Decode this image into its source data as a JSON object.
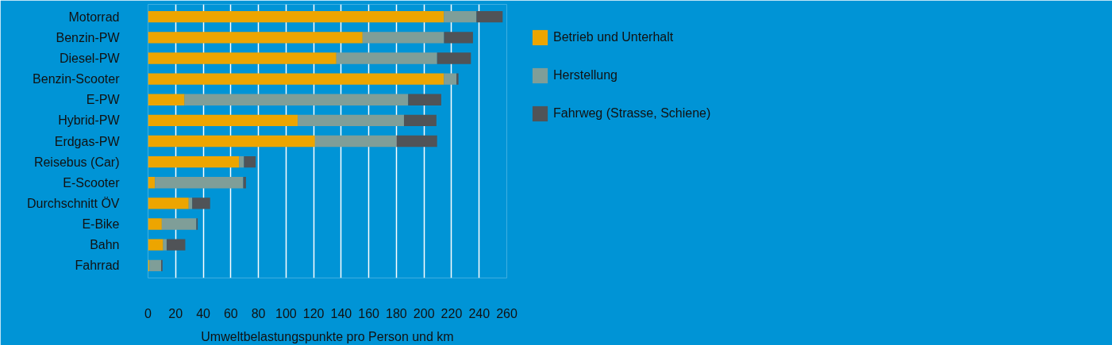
{
  "chart_data": {
    "type": "bar",
    "orientation": "horizontal",
    "stacked": true,
    "xlabel": "Umweltbelastungspunkte pro Person und km",
    "categories": [
      "Motorrad",
      "Benzin-PW",
      "Diesel-PW",
      "Benzin-Scooter",
      "E-PW",
      "Hybrid-PW",
      "Erdgas-PW",
      "Reisebus (Car)",
      "E-Scooter",
      "Durchschnitt ÖV",
      "E-Bike",
      "Bahn",
      "Fahrrad"
    ],
    "series": [
      {
        "name": "Betrieb und Unterhalt",
        "color": "#eda500",
        "values": [
          214.5,
          155.5,
          136.5,
          214.5,
          26.5,
          108.5,
          121,
          66,
          5,
          29.5,
          10,
          11,
          1
        ]
      },
      {
        "name": "Herstellung",
        "color": "#7f9e98",
        "values": [
          23.5,
          59,
          73,
          9,
          162,
          77,
          59,
          3.5,
          64,
          2.5,
          25,
          2.5,
          8.5
        ]
      },
      {
        "name": "Fahrweg (Strasse, Schiene)",
        "color": "#505357",
        "values": [
          19,
          21,
          24.5,
          1.5,
          24,
          23.5,
          29.5,
          8.5,
          2,
          13,
          1,
          13.5,
          1
        ]
      }
    ],
    "xlim": [
      0,
      260
    ],
    "xticks": [
      0,
      20,
      40,
      60,
      80,
      100,
      120,
      140,
      160,
      180,
      200,
      220,
      240,
      260
    ],
    "grid": "x",
    "legend": "top right"
  }
}
